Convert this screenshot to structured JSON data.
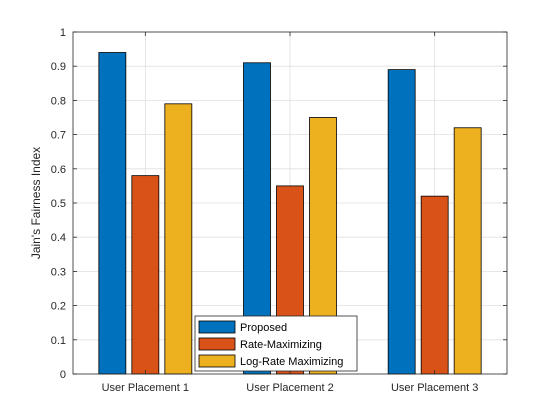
{
  "chart_data": {
    "type": "bar",
    "title": "",
    "xlabel": "",
    "ylabel": "Jain's Fairness Index",
    "categories": [
      "User Placement 1",
      "User Placement 2",
      "User Placement 3"
    ],
    "ylim": [
      0,
      1
    ],
    "yticks": [
      0,
      0.1,
      0.2,
      0.3,
      0.4,
      0.5,
      0.6,
      0.7,
      0.8,
      0.9,
      1
    ],
    "ytick_labels": [
      "0",
      "0.1",
      "0.2",
      "0.3",
      "0.4",
      "0.5",
      "0.6",
      "0.7",
      "0.8",
      "0.9",
      "1"
    ],
    "grid": true,
    "legend_position": "bottom-center",
    "series": [
      {
        "name": "Proposed",
        "color": "#0072BD",
        "values": [
          0.94,
          0.91,
          0.89
        ]
      },
      {
        "name": "Rate-Maximizing",
        "color": "#D95319",
        "values": [
          0.58,
          0.55,
          0.52
        ]
      },
      {
        "name": "Log-Rate Maximizing",
        "color": "#EDB120",
        "values": [
          0.79,
          0.75,
          0.72
        ]
      }
    ]
  }
}
